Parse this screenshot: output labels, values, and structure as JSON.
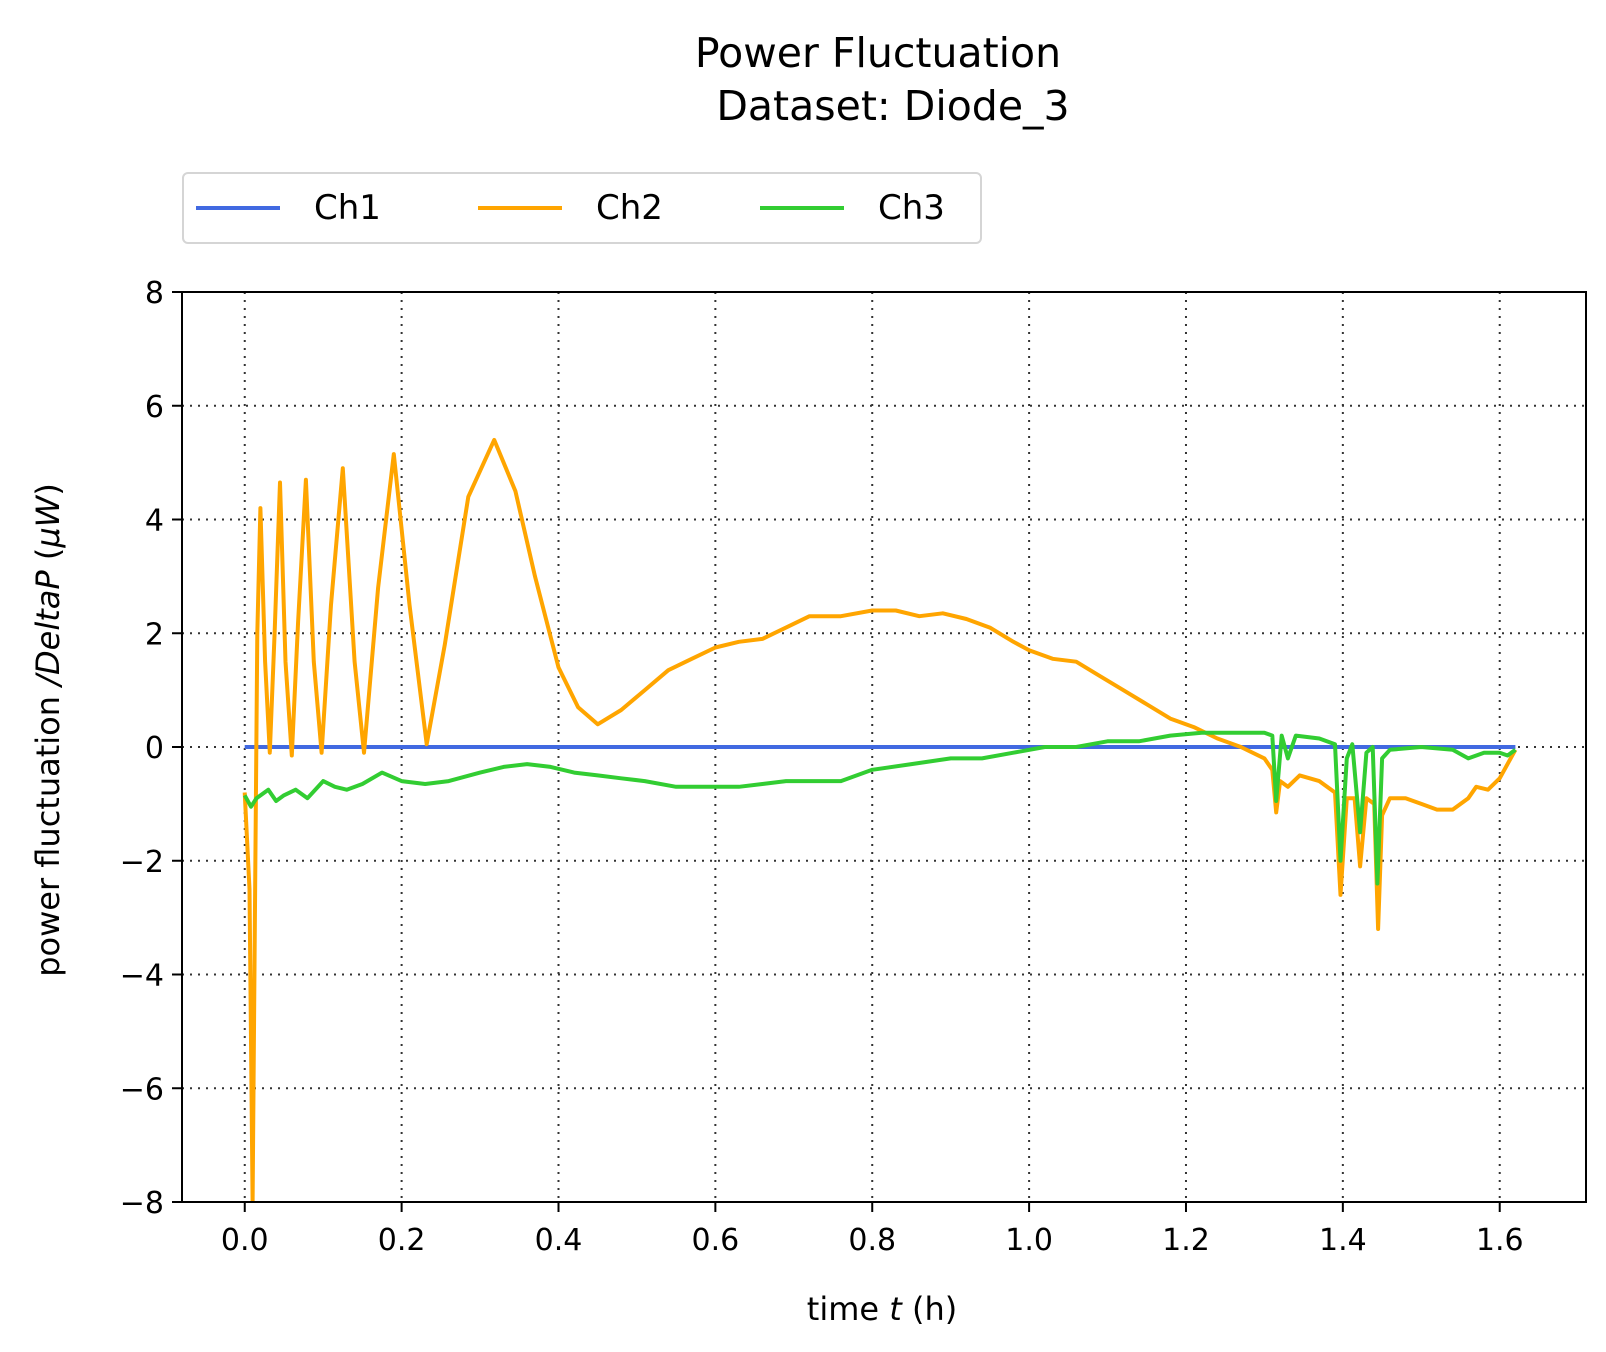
{
  "chart_data": {
    "type": "line",
    "title_line1": "Power Fluctuation",
    "title_line2": "Dataset: Diode_3",
    "xlabel_prefix": "time ",
    "xlabel_var": "t",
    "xlabel_suffix": " (h)",
    "ylabel_prefix": "power fluctuation ",
    "ylabel_var": "/DeltaP",
    "ylabel_paren_open": " (",
    "ylabel_unit": "μW",
    "ylabel_paren_close": ")",
    "xlim": [
      -0.08,
      1.71
    ],
    "ylim": [
      -8,
      8
    ],
    "xticks": [
      0.0,
      0.2,
      0.4,
      0.6,
      0.8,
      1.0,
      1.2,
      1.4,
      1.6
    ],
    "xtick_labels": [
      "0.0",
      "0.2",
      "0.4",
      "0.6",
      "0.8",
      "1.0",
      "1.2",
      "1.4",
      "1.6"
    ],
    "yticks": [
      -8,
      -6,
      -4,
      -2,
      0,
      2,
      4,
      6,
      8
    ],
    "ytick_labels": [
      "−8",
      "−6",
      "−4",
      "−2",
      "0",
      "2",
      "4",
      "6",
      "8"
    ],
    "grid": true,
    "legend_position": "above-left",
    "series": [
      {
        "name": "Ch1",
        "color": "#4169e1",
        "points": [
          [
            0.0,
            0.0
          ],
          [
            0.2,
            0.0
          ],
          [
            0.4,
            0.0
          ],
          [
            0.6,
            0.0
          ],
          [
            0.8,
            0.0
          ],
          [
            1.0,
            0.0
          ],
          [
            1.2,
            0.0
          ],
          [
            1.35,
            0.0
          ],
          [
            1.5,
            0.0
          ],
          [
            1.62,
            0.0
          ]
        ]
      },
      {
        "name": "Ch2",
        "color": "#ffa500",
        "points": [
          [
            0.0,
            -0.8
          ],
          [
            0.006,
            -2.5
          ],
          [
            0.01,
            -8.0
          ],
          [
            0.013,
            -3.0
          ],
          [
            0.016,
            2.0
          ],
          [
            0.02,
            4.2
          ],
          [
            0.026,
            1.5
          ],
          [
            0.032,
            -0.1
          ],
          [
            0.038,
            2.0
          ],
          [
            0.045,
            4.65
          ],
          [
            0.052,
            1.5
          ],
          [
            0.06,
            -0.15
          ],
          [
            0.068,
            2.2
          ],
          [
            0.078,
            4.7
          ],
          [
            0.088,
            1.5
          ],
          [
            0.098,
            -0.1
          ],
          [
            0.11,
            2.5
          ],
          [
            0.125,
            4.9
          ],
          [
            0.14,
            1.5
          ],
          [
            0.152,
            -0.1
          ],
          [
            0.17,
            2.8
          ],
          [
            0.19,
            5.15
          ],
          [
            0.21,
            2.5
          ],
          [
            0.232,
            0.05
          ],
          [
            0.255,
            1.8
          ],
          [
            0.285,
            4.4
          ],
          [
            0.318,
            5.4
          ],
          [
            0.345,
            4.5
          ],
          [
            0.37,
            3.0
          ],
          [
            0.4,
            1.4
          ],
          [
            0.425,
            0.7
          ],
          [
            0.45,
            0.4
          ],
          [
            0.48,
            0.65
          ],
          [
            0.51,
            1.0
          ],
          [
            0.54,
            1.35
          ],
          [
            0.57,
            1.55
          ],
          [
            0.6,
            1.75
          ],
          [
            0.63,
            1.85
          ],
          [
            0.66,
            1.9
          ],
          [
            0.69,
            2.1
          ],
          [
            0.72,
            2.3
          ],
          [
            0.76,
            2.3
          ],
          [
            0.8,
            2.4
          ],
          [
            0.83,
            2.4
          ],
          [
            0.86,
            2.3
          ],
          [
            0.89,
            2.35
          ],
          [
            0.92,
            2.25
          ],
          [
            0.95,
            2.1
          ],
          [
            0.98,
            1.85
          ],
          [
            1.0,
            1.7
          ],
          [
            1.03,
            1.55
          ],
          [
            1.06,
            1.5
          ],
          [
            1.09,
            1.25
          ],
          [
            1.12,
            1.0
          ],
          [
            1.15,
            0.75
          ],
          [
            1.18,
            0.5
          ],
          [
            1.21,
            0.35
          ],
          [
            1.24,
            0.15
          ],
          [
            1.27,
            0.0
          ],
          [
            1.3,
            -0.2
          ],
          [
            1.31,
            -0.4
          ],
          [
            1.315,
            -1.15
          ],
          [
            1.32,
            -0.6
          ],
          [
            1.33,
            -0.7
          ],
          [
            1.345,
            -0.5
          ],
          [
            1.37,
            -0.6
          ],
          [
            1.39,
            -0.8
          ],
          [
            1.397,
            -2.6
          ],
          [
            1.405,
            -0.9
          ],
          [
            1.415,
            -0.9
          ],
          [
            1.422,
            -2.1
          ],
          [
            1.43,
            -0.9
          ],
          [
            1.44,
            -1.0
          ],
          [
            1.445,
            -3.2
          ],
          [
            1.45,
            -1.2
          ],
          [
            1.46,
            -0.9
          ],
          [
            1.48,
            -0.9
          ],
          [
            1.5,
            -1.0
          ],
          [
            1.52,
            -1.1
          ],
          [
            1.54,
            -1.1
          ],
          [
            1.56,
            -0.9
          ],
          [
            1.57,
            -0.7
          ],
          [
            1.585,
            -0.75
          ],
          [
            1.6,
            -0.55
          ],
          [
            1.62,
            -0.05
          ]
        ]
      },
      {
        "name": "Ch3",
        "color": "#32cd32",
        "points": [
          [
            0.0,
            -0.85
          ],
          [
            0.008,
            -1.05
          ],
          [
            0.015,
            -0.9
          ],
          [
            0.03,
            -0.75
          ],
          [
            0.04,
            -0.95
          ],
          [
            0.05,
            -0.85
          ],
          [
            0.065,
            -0.75
          ],
          [
            0.08,
            -0.9
          ],
          [
            0.1,
            -0.6
          ],
          [
            0.115,
            -0.7
          ],
          [
            0.13,
            -0.75
          ],
          [
            0.15,
            -0.65
          ],
          [
            0.175,
            -0.45
          ],
          [
            0.2,
            -0.6
          ],
          [
            0.23,
            -0.65
          ],
          [
            0.26,
            -0.6
          ],
          [
            0.3,
            -0.45
          ],
          [
            0.33,
            -0.35
          ],
          [
            0.36,
            -0.3
          ],
          [
            0.39,
            -0.35
          ],
          [
            0.42,
            -0.45
          ],
          [
            0.45,
            -0.5
          ],
          [
            0.48,
            -0.55
          ],
          [
            0.51,
            -0.6
          ],
          [
            0.55,
            -0.7
          ],
          [
            0.6,
            -0.7
          ],
          [
            0.63,
            -0.7
          ],
          [
            0.66,
            -0.65
          ],
          [
            0.69,
            -0.6
          ],
          [
            0.72,
            -0.6
          ],
          [
            0.76,
            -0.6
          ],
          [
            0.8,
            -0.4
          ],
          [
            0.85,
            -0.3
          ],
          [
            0.9,
            -0.2
          ],
          [
            0.94,
            -0.2
          ],
          [
            0.98,
            -0.1
          ],
          [
            1.02,
            0.0
          ],
          [
            1.06,
            0.0
          ],
          [
            1.1,
            0.1
          ],
          [
            1.14,
            0.1
          ],
          [
            1.18,
            0.2
          ],
          [
            1.22,
            0.25
          ],
          [
            1.26,
            0.25
          ],
          [
            1.3,
            0.25
          ],
          [
            1.31,
            0.2
          ],
          [
            1.315,
            -0.95
          ],
          [
            1.322,
            0.2
          ],
          [
            1.33,
            -0.2
          ],
          [
            1.34,
            0.2
          ],
          [
            1.37,
            0.15
          ],
          [
            1.39,
            0.05
          ],
          [
            1.397,
            -2.0
          ],
          [
            1.405,
            -0.2
          ],
          [
            1.412,
            0.05
          ],
          [
            1.422,
            -1.5
          ],
          [
            1.43,
            -0.1
          ],
          [
            1.438,
            0.0
          ],
          [
            1.444,
            -2.4
          ],
          [
            1.45,
            -0.2
          ],
          [
            1.46,
            -0.05
          ],
          [
            1.5,
            0.0
          ],
          [
            1.54,
            -0.05
          ],
          [
            1.56,
            -0.2
          ],
          [
            1.58,
            -0.1
          ],
          [
            1.6,
            -0.1
          ],
          [
            1.61,
            -0.15
          ],
          [
            1.62,
            -0.05
          ]
        ]
      }
    ]
  }
}
